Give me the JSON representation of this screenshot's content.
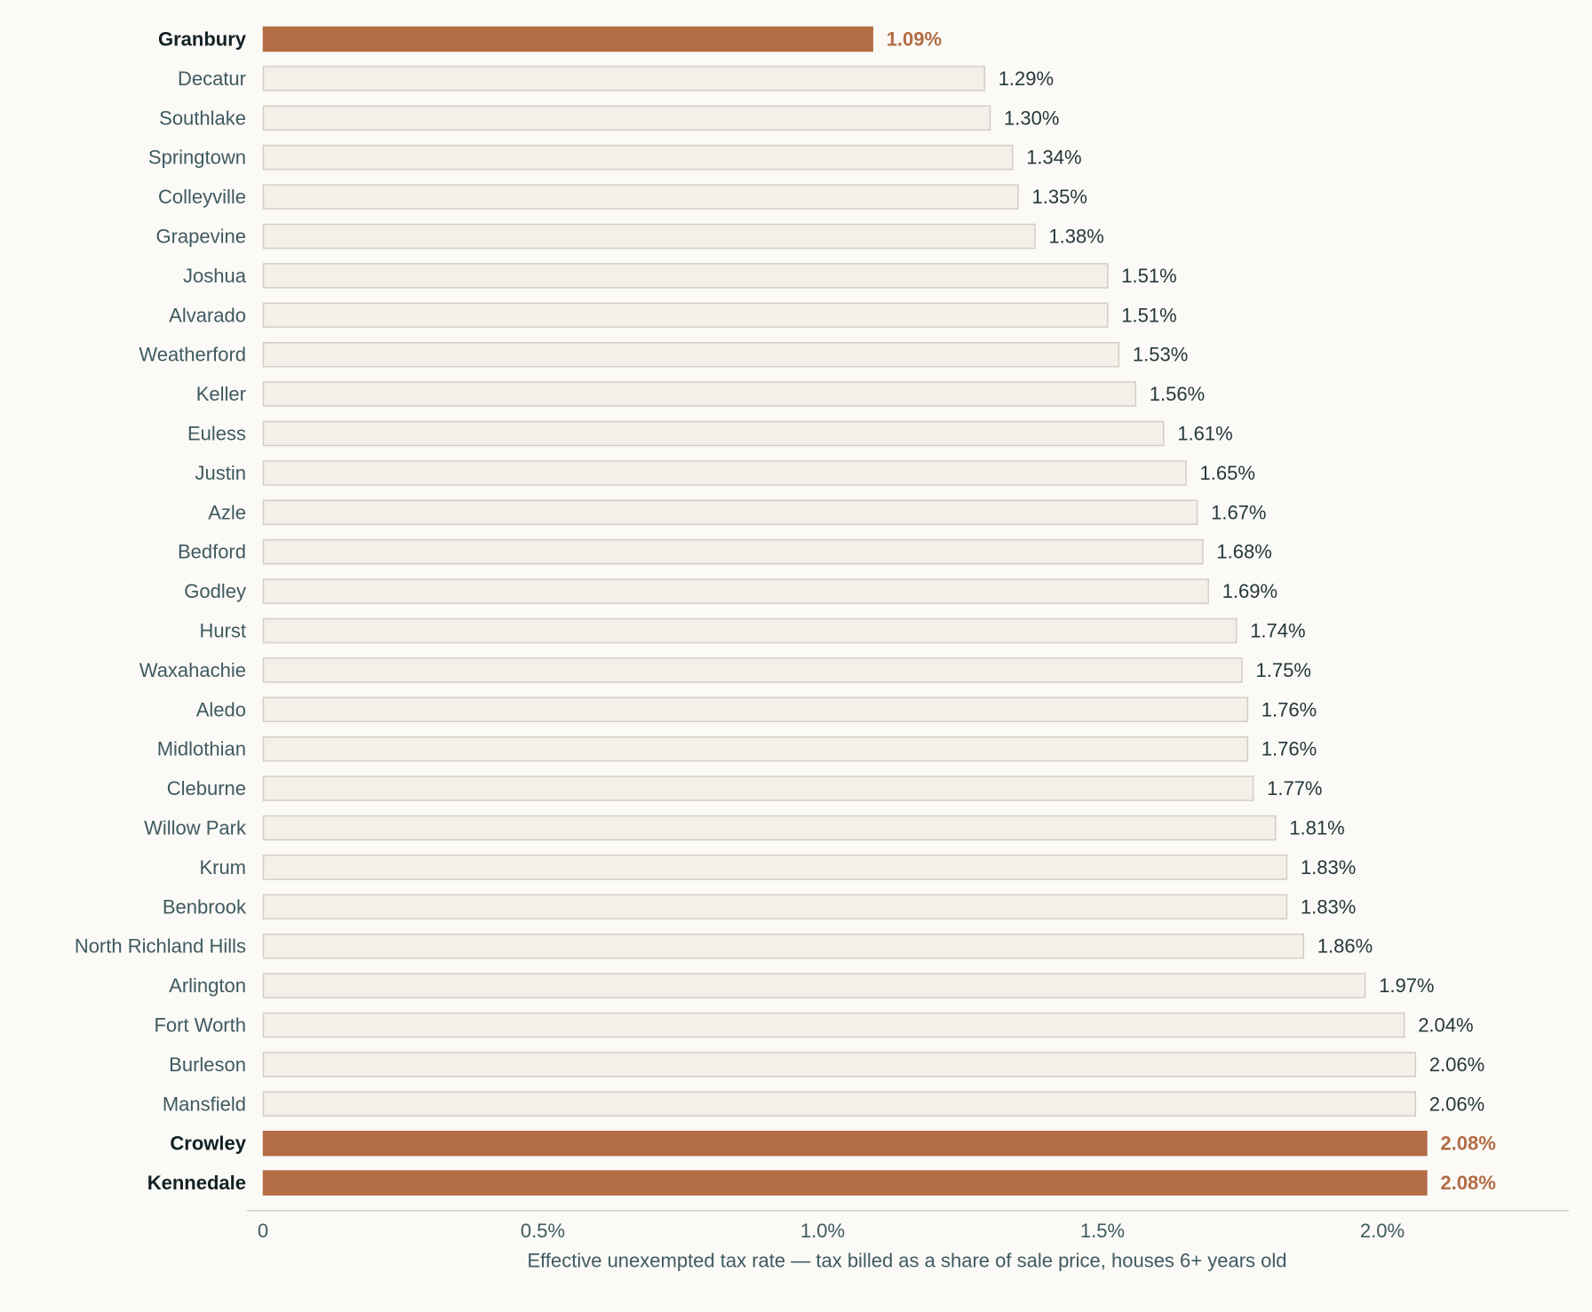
{
  "chart_data": {
    "type": "bar",
    "orientation": "horizontal",
    "categories": [
      "Granbury",
      "Decatur",
      "Southlake",
      "Springtown",
      "Colleyville",
      "Grapevine",
      "Joshua",
      "Alvarado",
      "Weatherford",
      "Keller",
      "Euless",
      "Justin",
      "Azle",
      "Bedford",
      "Godley",
      "Hurst",
      "Waxahachie",
      "Aledo",
      "Midlothian",
      "Cleburne",
      "Willow Park",
      "Krum",
      "Benbrook",
      "North Richland Hills",
      "Arlington",
      "Fort Worth",
      "Burleson",
      "Mansfield",
      "Crowley",
      "Kennedale"
    ],
    "values": [
      1.09,
      1.29,
      1.3,
      1.34,
      1.35,
      1.38,
      1.51,
      1.51,
      1.53,
      1.56,
      1.61,
      1.65,
      1.67,
      1.68,
      1.69,
      1.74,
      1.75,
      1.76,
      1.76,
      1.77,
      1.81,
      1.83,
      1.83,
      1.86,
      1.97,
      2.04,
      2.06,
      2.06,
      2.08,
      2.08
    ],
    "value_labels": [
      "1.09%",
      "1.29%",
      "1.30%",
      "1.34%",
      "1.35%",
      "1.38%",
      "1.51%",
      "1.51%",
      "1.53%",
      "1.56%",
      "1.61%",
      "1.65%",
      "1.67%",
      "1.68%",
      "1.69%",
      "1.74%",
      "1.75%",
      "1.76%",
      "1.76%",
      "1.77%",
      "1.81%",
      "1.83%",
      "1.83%",
      "1.86%",
      "1.97%",
      "2.04%",
      "2.06%",
      "2.06%",
      "2.08%",
      "2.08%"
    ],
    "highlighted": [
      "Granbury",
      "Crowley",
      "Kennedale"
    ],
    "xlabel": "Effective unexempted tax rate — tax billed as a share of sale price, houses 6+ years old",
    "ylabel": "",
    "title": "",
    "x_ticks": [
      0,
      0.5,
      1.0,
      1.5,
      2.0
    ],
    "x_tick_labels": [
      "0",
      "0.5%",
      "1.0%",
      "1.5%",
      "2.0%"
    ],
    "xlim": [
      0,
      2.35
    ],
    "grid": false,
    "legend": "none",
    "colors": {
      "highlight_fill": "#b36d45",
      "default_fill": "#f4efe8",
      "default_stroke": "#d3cdc6",
      "highlight_value_text": "#b36d45",
      "axis_line": "#d3cdc6"
    }
  }
}
